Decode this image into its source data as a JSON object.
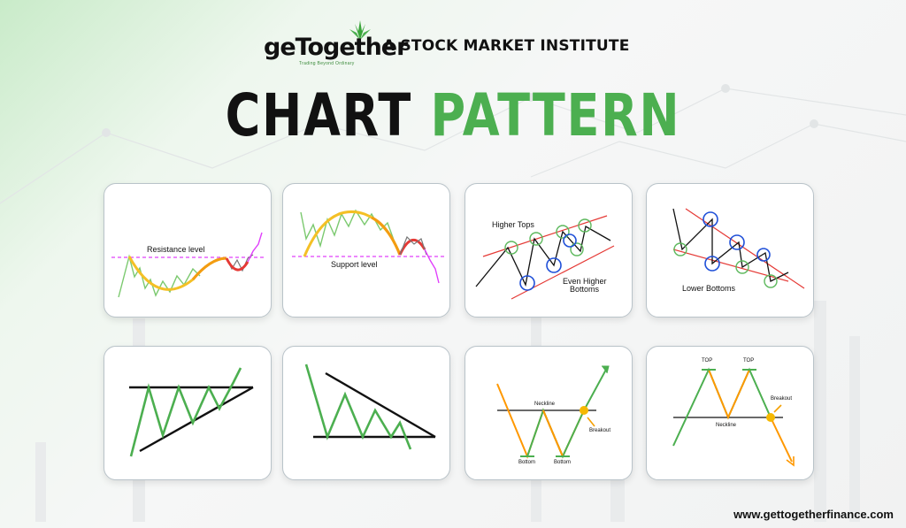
{
  "header": {
    "brand": "geTogether",
    "brand_tagline": "Trading Beyond Ordinary",
    "institute": "A STOCK MARKET INSTITUTE"
  },
  "title": {
    "part1": "CHART",
    "part2": "PATTERN"
  },
  "colors": {
    "accent_green": "#4caf50",
    "pattern_red": "#e53935",
    "pattern_orange": "#ff9800",
    "circle_blue": "#1e4fd8",
    "resistance_pink": "#e040fb"
  },
  "cards": {
    "resistance": {
      "label": "Resistance level"
    },
    "support": {
      "label": "Support level"
    },
    "higher_tops": {
      "label_top": "Higher Tops",
      "label_bottom_1": "Even Higher",
      "label_bottom_2": "Bottoms"
    },
    "lower_bottoms": {
      "label": "Lower Bottoms"
    },
    "ascending_triangle": {},
    "descending_triangle": {},
    "double_bottom": {
      "neckline": "Neckline",
      "breakout": "Breakout",
      "bottom1": "Bottom",
      "bottom2": "Bottom"
    },
    "double_top": {
      "top1": "TOP",
      "top2": "TOP",
      "breakout": "Breakout",
      "neckline": "Neckline"
    }
  },
  "footer": {
    "url": "www.gettogetherfinance.com"
  }
}
